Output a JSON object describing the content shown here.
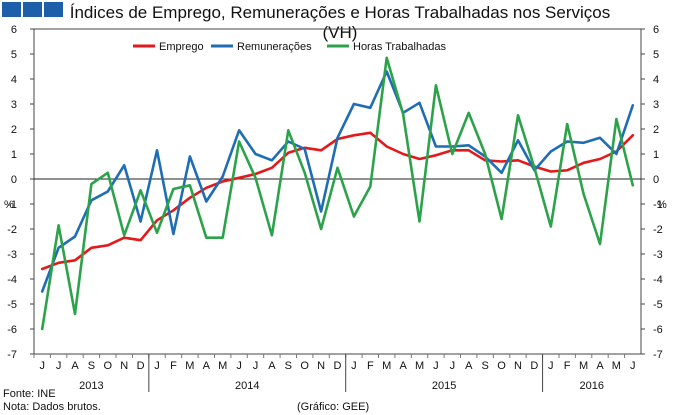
{
  "brand": {
    "name": "GEE logo"
  },
  "chart_data": {
    "type": "line",
    "title": "Índices de Emprego, Remunerações e Horas Trabalhadas nos Serviços (VH)",
    "ylabel_left": "%",
    "ylabel_right": "%",
    "ylim": [
      -7,
      6
    ],
    "yticks": [
      6,
      5,
      4,
      3,
      2,
      1,
      0,
      -1,
      -2,
      -3,
      -4,
      -5,
      -6,
      -7
    ],
    "month_labels": [
      "J",
      "J",
      "A",
      "S",
      "O",
      "N",
      "D",
      "J",
      "F",
      "M",
      "A",
      "M",
      "J",
      "J",
      "A",
      "S",
      "O",
      "N",
      "D",
      "J",
      "F",
      "M",
      "A",
      "M",
      "J",
      "J",
      "A",
      "S",
      "O",
      "N",
      "D",
      "J",
      "F",
      "M",
      "A",
      "M",
      "J"
    ],
    "year_groups": [
      {
        "label": "2013",
        "start": 0,
        "end": 6
      },
      {
        "label": "2014",
        "start": 7,
        "end": 18
      },
      {
        "label": "2015",
        "start": 19,
        "end": 30
      },
      {
        "label": "2016",
        "start": 31,
        "end": 36
      }
    ],
    "legend_position": "top-center",
    "series": [
      {
        "name": "Emprego",
        "color": "#e31a1c",
        "values": [
          -3.6,
          -3.35,
          -3.25,
          -2.75,
          -2.65,
          -2.35,
          -2.45,
          -1.65,
          -1.25,
          -0.75,
          -0.35,
          -0.1,
          0.05,
          0.2,
          0.45,
          1.05,
          1.25,
          1.15,
          1.6,
          1.75,
          1.85,
          1.3,
          1.0,
          0.8,
          0.95,
          1.15,
          1.15,
          0.75,
          0.7,
          0.75,
          0.5,
          0.3,
          0.35,
          0.65,
          0.8,
          1.1,
          1.75
        ]
      },
      {
        "name": "Remunerações",
        "color": "#1f6db3",
        "values": [
          -4.5,
          -2.75,
          -2.3,
          -0.85,
          -0.5,
          0.55,
          -1.7,
          1.15,
          -2.2,
          0.9,
          -0.9,
          0.1,
          1.95,
          1.0,
          0.75,
          1.5,
          1.2,
          -1.3,
          1.65,
          3.0,
          2.85,
          4.3,
          2.65,
          3.05,
          1.3,
          1.3,
          1.35,
          0.9,
          0.25,
          1.55,
          0.35,
          1.1,
          1.5,
          1.45,
          1.65,
          1.0,
          2.95
        ]
      },
      {
        "name": "Horas Trabalhadas",
        "color": "#2ca24a",
        "values": [
          -6.0,
          -1.85,
          -5.4,
          -0.2,
          0.25,
          -2.25,
          -0.45,
          -2.15,
          -0.4,
          -0.25,
          -2.35,
          -2.35,
          1.5,
          0.05,
          -2.25,
          1.95,
          0.25,
          -2.0,
          0.45,
          -1.5,
          -0.3,
          4.85,
          2.6,
          -1.7,
          3.75,
          1.0,
          2.65,
          1.0,
          -1.6,
          2.55,
          0.45,
          -1.9,
          2.2,
          -0.6,
          -2.6,
          2.4,
          -0.25
        ]
      }
    ]
  },
  "footer": {
    "source": "Fonte: INE",
    "note": "Nota: Dados brutos.",
    "credit": "(Gráfico: GEE)"
  }
}
